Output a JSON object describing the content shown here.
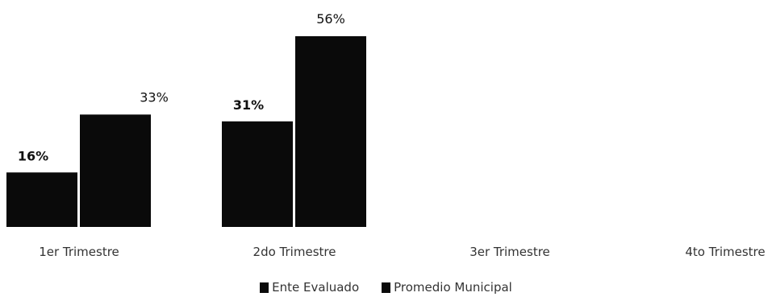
{
  "chart_data": {
    "type": "bar",
    "categories": [
      "1er Trimestre",
      "2do Trimestre",
      "3er Trimestre",
      "4to Trimestre"
    ],
    "series": [
      {
        "name": "Ente Evaluado",
        "values": [
          16,
          31,
          null,
          null
        ],
        "labels": [
          "16%",
          "31%",
          "",
          ""
        ],
        "color": "#0a0a0a"
      },
      {
        "name": "Promedio Municipal",
        "values": [
          33,
          56,
          null,
          null
        ],
        "labels": [
          "33%",
          "56%",
          "",
          ""
        ],
        "color": "#0a0a0a"
      }
    ],
    "title": "",
    "xlabel": "",
    "ylabel": "",
    "ylim": [
      0,
      56
    ],
    "grid": false,
    "legend": "bottom"
  }
}
